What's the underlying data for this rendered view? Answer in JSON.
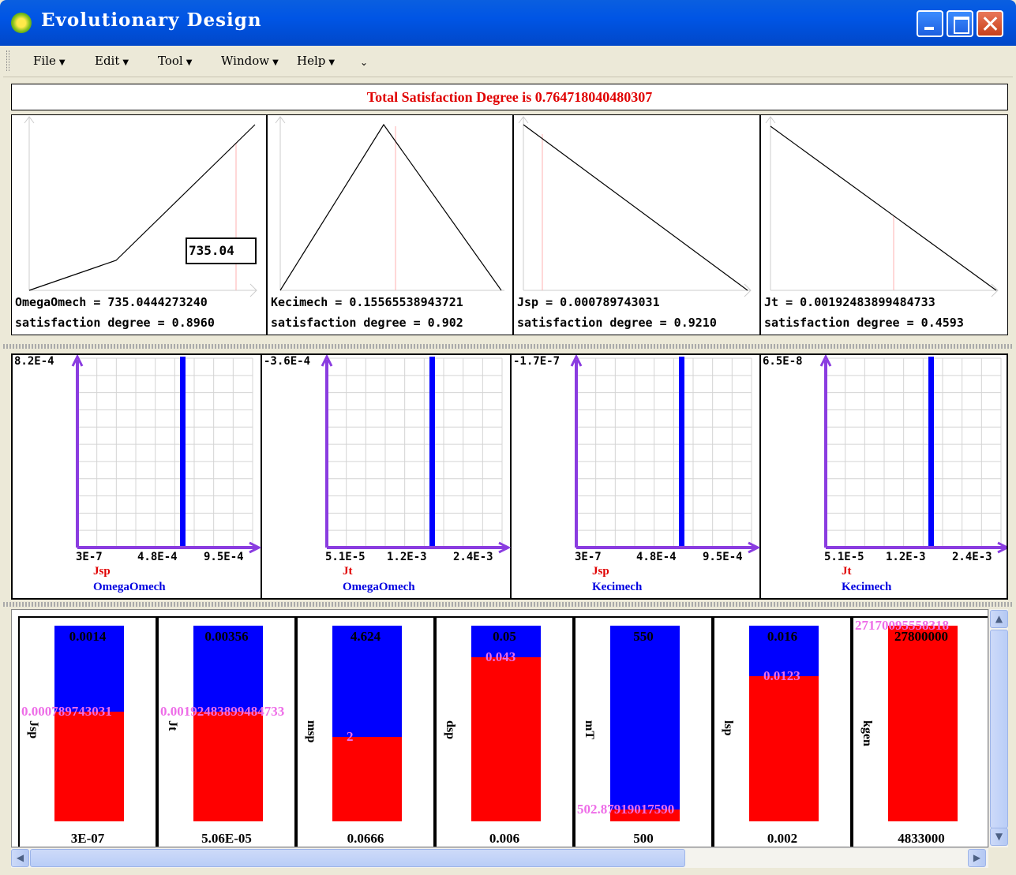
{
  "window": {
    "title": "Evolutionary Design"
  },
  "menu": {
    "file": "File",
    "edit": "Edit",
    "tool": "Tool",
    "window": "Window",
    "help": "Help"
  },
  "satisfaction": {
    "text": "Total Satisfaction Degree is 0.764718040480307"
  },
  "fuzzy_panels": [
    {
      "value_line": "OmegaOmech = 735.0444273240",
      "degree_line": "satisfaction degree = 0.8960",
      "box": "735.04"
    },
    {
      "value_line": "Kecimech = 0.15565538943721",
      "degree_line": "satisfaction degree = 0.902"
    },
    {
      "value_line": "Jsp = 0.000789743031",
      "degree_line": "satisfaction degree = 0.9210"
    },
    {
      "value_line": "Jt = 0.00192483899484733",
      "degree_line": "satisfaction degree = 0.4593"
    }
  ],
  "scatter_panels": [
    {
      "ymax": "8.2E-4",
      "xticks": [
        "3E-7",
        "4.8E-4",
        "9.5E-4"
      ],
      "xname": "Jsp",
      "yname": "OmegaOmech"
    },
    {
      "ymax": "-3.6E-4",
      "xticks": [
        "5.1E-5",
        "1.2E-3",
        "2.4E-3"
      ],
      "xname": "Jt",
      "yname": "OmegaOmech"
    },
    {
      "ymax": "-1.7E-7",
      "xticks": [
        "3E-7",
        "4.8E-4",
        "9.5E-4"
      ],
      "xname": "Jsp",
      "yname": "Kecimech"
    },
    {
      "ymax": "6.5E-8",
      "xticks": [
        "5.1E-5",
        "1.2E-3",
        "2.4E-3"
      ],
      "xname": "Jt",
      "yname": "Kecimech"
    }
  ],
  "bar_panels": [
    {
      "name": "Jsp",
      "top": "0.0014",
      "bottom": "3E-07",
      "current": "0.000789743031",
      "fill": 0.56
    },
    {
      "name": "Jt",
      "top": "0.00356",
      "bottom": "5.06E-05",
      "current": "0.00192483899484733",
      "fill": 0.56
    },
    {
      "name": "msp",
      "top": "4.624",
      "bottom": "0.0666",
      "current": "2",
      "fill": 0.43
    },
    {
      "name": "dsp",
      "top": "0.05",
      "bottom": "0.006",
      "current": "0.043",
      "fill": 0.84
    },
    {
      "name": "mT",
      "top": "550",
      "bottom": "500",
      "current": "502.87919017590",
      "fill": 0.06
    },
    {
      "name": "lsp",
      "top": "0.016",
      "bottom": "0.002",
      "current": "0.0123",
      "fill": 0.74
    },
    {
      "name": "kgen",
      "top": "27800000",
      "bottom": "4833000",
      "current": "27170095558318",
      "fill": 1.0
    }
  ],
  "colors": {
    "upper": "#0000ff",
    "lower": "#ff0000",
    "current": "#ee6ee8",
    "axis": "#8a3ce0",
    "title_red": "#e00000"
  }
}
